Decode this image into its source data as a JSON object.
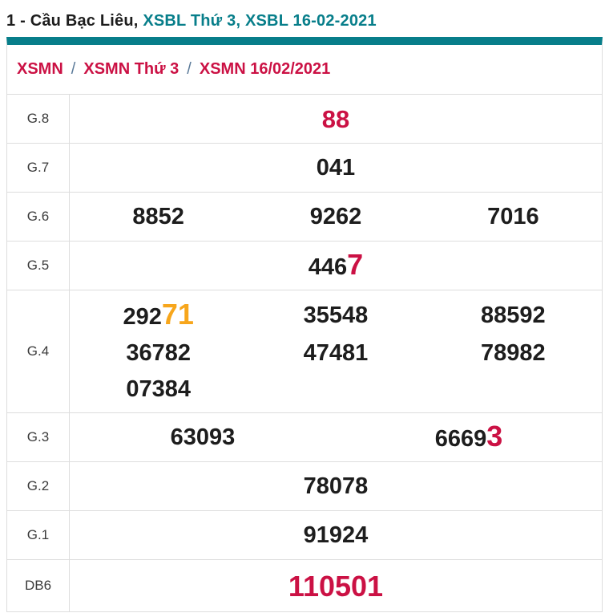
{
  "page_title": {
    "plain": "1 - Cầu Bạc Liêu, ",
    "link_weekday": "XSBL Thứ 3, ",
    "link_date": "XSBL 16-02-2021"
  },
  "breadcrumb": {
    "items": [
      "XSMN",
      "XSMN Thứ 3",
      "XSMN 16/02/2021"
    ],
    "separator": "/"
  },
  "results": {
    "rows": [
      {
        "label": "G.8",
        "cells": [
          {
            "text": "88",
            "color": "red"
          }
        ]
      },
      {
        "label": "G.7",
        "cells": [
          {
            "text": "041"
          }
        ]
      },
      {
        "label": "G.6",
        "cells": [
          {
            "text": "8852"
          },
          {
            "text": "9262"
          },
          {
            "text": "7016"
          }
        ]
      },
      {
        "label": "G.5",
        "cells": [
          {
            "prefix": "446",
            "highlight": "7",
            "highlight_color": "red"
          }
        ]
      },
      {
        "label": "G.4",
        "cells": [
          {
            "prefix": "292",
            "highlight": "71",
            "highlight_color": "orange"
          },
          {
            "text": "35548"
          },
          {
            "text": "88592"
          },
          {
            "text": "36782"
          },
          {
            "text": "47481"
          },
          {
            "text": "78982"
          },
          {
            "text": "07384"
          }
        ]
      },
      {
        "label": "G.3",
        "cells": [
          {
            "text": "63093"
          },
          {
            "prefix": "6669",
            "highlight": "3",
            "highlight_color": "red"
          }
        ]
      },
      {
        "label": "G.2",
        "cells": [
          {
            "text": "78078"
          }
        ]
      },
      {
        "label": "G.1",
        "cells": [
          {
            "text": "91924"
          }
        ]
      },
      {
        "label": "DB6",
        "cells": [
          {
            "text": "110501",
            "color": "red"
          }
        ]
      }
    ]
  },
  "colors": {
    "teal": "#077e8a",
    "crimson": "#cb1144",
    "orange": "#f7a61c",
    "slash-blue": "#5c7b9a",
    "number-black": "#1d1d1d",
    "label-gray": "#3b3b3b",
    "border-gray": "#dddddd"
  }
}
